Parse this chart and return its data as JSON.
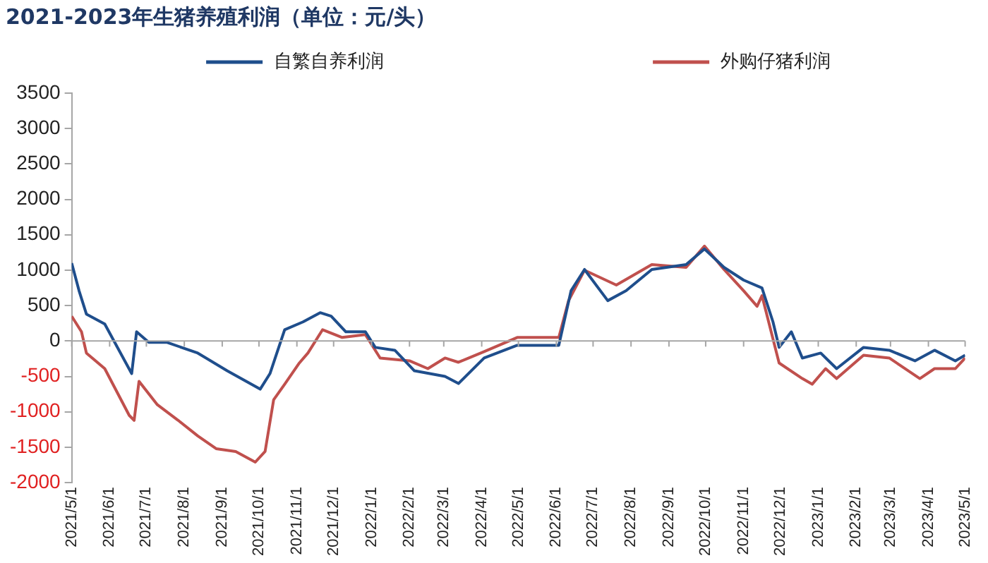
{
  "chart_data": {
    "type": "line",
    "title": "2021-2023年生猪养殖利润（单位：元/头）",
    "legend": "top",
    "marker": "none",
    "line_style": "solid",
    "xlim": [
      "2021-05-01",
      "2023-05-01"
    ],
    "xticks": [
      {
        "value": "2021-05-01",
        "label": "2021/5/1"
      },
      {
        "value": "2021-06-01",
        "label": "2021/6/1"
      },
      {
        "value": "2021-07-01",
        "label": "2021/7/1"
      },
      {
        "value": "2021-08-01",
        "label": "2021/8/1"
      },
      {
        "value": "2021-09-01",
        "label": "2021/9/1"
      },
      {
        "value": "2021-10-01",
        "label": "2021/10/1"
      },
      {
        "value": "2021-11-01",
        "label": "2021/11/1"
      },
      {
        "value": "2021-12-01",
        "label": "2021/12/1"
      },
      {
        "value": "2022-01-01",
        "label": "2022/1/1"
      },
      {
        "value": "2022-02-01",
        "label": "2022/2/1"
      },
      {
        "value": "2022-03-01",
        "label": "2022/3/1"
      },
      {
        "value": "2022-04-01",
        "label": "2022/4/1"
      },
      {
        "value": "2022-05-01",
        "label": "2022/5/1"
      },
      {
        "value": "2022-06-01",
        "label": "2022/6/1"
      },
      {
        "value": "2022-07-01",
        "label": "2022/7/1"
      },
      {
        "value": "2022-08-01",
        "label": "2022/8/1"
      },
      {
        "value": "2022-09-01",
        "label": "2022/9/1"
      },
      {
        "value": "2022-10-01",
        "label": "2022/10/1"
      },
      {
        "value": "2022-11-01",
        "label": "2022/11/1"
      },
      {
        "value": "2022-12-01",
        "label": "2022/12/1"
      },
      {
        "value": "2023-01-01",
        "label": "2023/1/1"
      },
      {
        "value": "2023-02-01",
        "label": "2023/2/1"
      },
      {
        "value": "2023-03-01",
        "label": "2023/3/1"
      },
      {
        "value": "2023-04-01",
        "label": "2023/4/1"
      },
      {
        "value": "2023-05-01",
        "label": "2023/5/1"
      }
    ],
    "ylim": [
      -2000,
      3500
    ],
    "yticks": [
      -2000,
      -1500,
      -1000,
      -500,
      0,
      500,
      1000,
      1500,
      2000,
      2500,
      3000,
      3500
    ],
    "series": [
      {
        "name": "自繁自养利润",
        "color": "#1f4e8c",
        "x": [
          "2021-05-01",
          "2021-05-07",
          "2021-05-13",
          "2021-05-28",
          "2021-06-19",
          "2021-06-23",
          "2021-07-03",
          "2021-07-18",
          "2021-08-12",
          "2021-09-05",
          "2021-10-02",
          "2021-10-10",
          "2021-10-22",
          "2021-11-06",
          "2021-11-20",
          "2021-11-29",
          "2021-12-11",
          "2021-12-27",
          "2022-01-04",
          "2022-01-20",
          "2022-02-05",
          "2022-03-02",
          "2022-03-13",
          "2022-04-03",
          "2022-04-30",
          "2022-06-03",
          "2022-06-13",
          "2022-06-24",
          "2022-07-13",
          "2022-07-28",
          "2022-08-18",
          "2022-09-15",
          "2022-09-30",
          "2022-10-16",
          "2022-11-01",
          "2022-11-16",
          "2022-11-25",
          "2022-11-30",
          "2022-12-10",
          "2022-12-19",
          "2023-01-03",
          "2023-01-16",
          "2023-02-07",
          "2023-02-28",
          "2023-03-21",
          "2023-04-06",
          "2023-04-23",
          "2023-05-01"
        ],
        "values": [
          1100,
          710,
          380,
          240,
          -460,
          130,
          -20,
          -20,
          -170,
          -420,
          -680,
          -460,
          160,
          270,
          400,
          350,
          130,
          130,
          -90,
          -130,
          -420,
          -500,
          -600,
          -240,
          -60,
          -60,
          710,
          1010,
          570,
          710,
          1010,
          1080,
          1300,
          1040,
          860,
          750,
          270,
          -90,
          130,
          -240,
          -170,
          -390,
          -90,
          -130,
          -280,
          -130,
          -280,
          -200
        ]
      },
      {
        "name": "外购仔猪利润",
        "color": "#c0504d",
        "x": [
          "2021-05-01",
          "2021-05-09",
          "2021-05-13",
          "2021-05-28",
          "2021-06-17",
          "2021-06-21",
          "2021-06-25",
          "2021-07-10",
          "2021-07-27",
          "2021-08-12",
          "2021-08-27",
          "2021-09-12",
          "2021-09-28",
          "2021-10-06",
          "2021-10-13",
          "2021-10-22",
          "2021-11-03",
          "2021-11-10",
          "2021-11-22",
          "2021-12-08",
          "2021-12-27",
          "2022-01-08",
          "2022-02-01",
          "2022-02-16",
          "2022-03-02",
          "2022-03-13",
          "2022-04-03",
          "2022-04-30",
          "2022-06-03",
          "2022-06-11",
          "2022-06-24",
          "2022-07-20",
          "2022-08-18",
          "2022-09-15",
          "2022-09-30",
          "2022-10-16",
          "2022-11-01",
          "2022-11-12",
          "2022-11-16",
          "2022-11-30",
          "2022-12-19",
          "2022-12-27",
          "2023-01-07",
          "2023-01-16",
          "2023-02-07",
          "2023-02-28",
          "2023-03-25",
          "2023-04-06",
          "2023-04-23",
          "2023-05-01"
        ],
        "values": [
          350,
          130,
          -170,
          -390,
          -1050,
          -1120,
          -570,
          -900,
          -1120,
          -1340,
          -1520,
          -1560,
          -1710,
          -1560,
          -830,
          -610,
          -310,
          -170,
          160,
          50,
          90,
          -240,
          -280,
          -390,
          -240,
          -300,
          -150,
          50,
          50,
          570,
          1000,
          790,
          1080,
          1040,
          1340,
          1010,
          710,
          490,
          640,
          -310,
          -530,
          -610,
          -390,
          -530,
          -200,
          -240,
          -530,
          -390,
          -390,
          -240
        ]
      }
    ]
  }
}
